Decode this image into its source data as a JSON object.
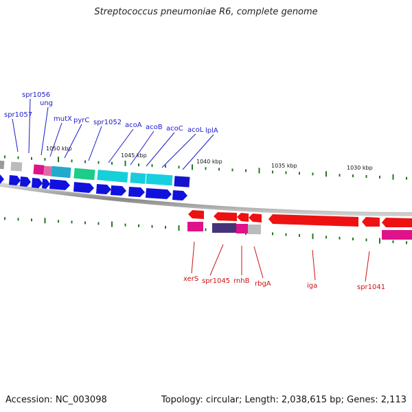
{
  "title": "Streptococcus pneumoniae R6, complete genome",
  "footer": {
    "accession": "Accession: NC_003098",
    "summary": "Topology: circular; Length: 2,038,615 bp; Genes: 2,113"
  },
  "colors": {
    "forward_label": "#1a1acc",
    "reverse_label": "#cc1111",
    "tick": "#227722",
    "backbone": "#888888"
  },
  "scale_labels": [
    "1050 kbp",
    "1045 kbp",
    "1040 kbp",
    "1035 kbp",
    "1030 kbp"
  ],
  "forward_genes": [
    "spr1057",
    "spr1056",
    "ung",
    "mutX",
    "pyrC",
    "spr1052",
    "acoA",
    "acoB",
    "acoC",
    "acoL",
    "lplA"
  ],
  "reverse_genes": [
    "xerS",
    "spr1045",
    "rnhB",
    "rbgA",
    "iga",
    "spr1041"
  ]
}
